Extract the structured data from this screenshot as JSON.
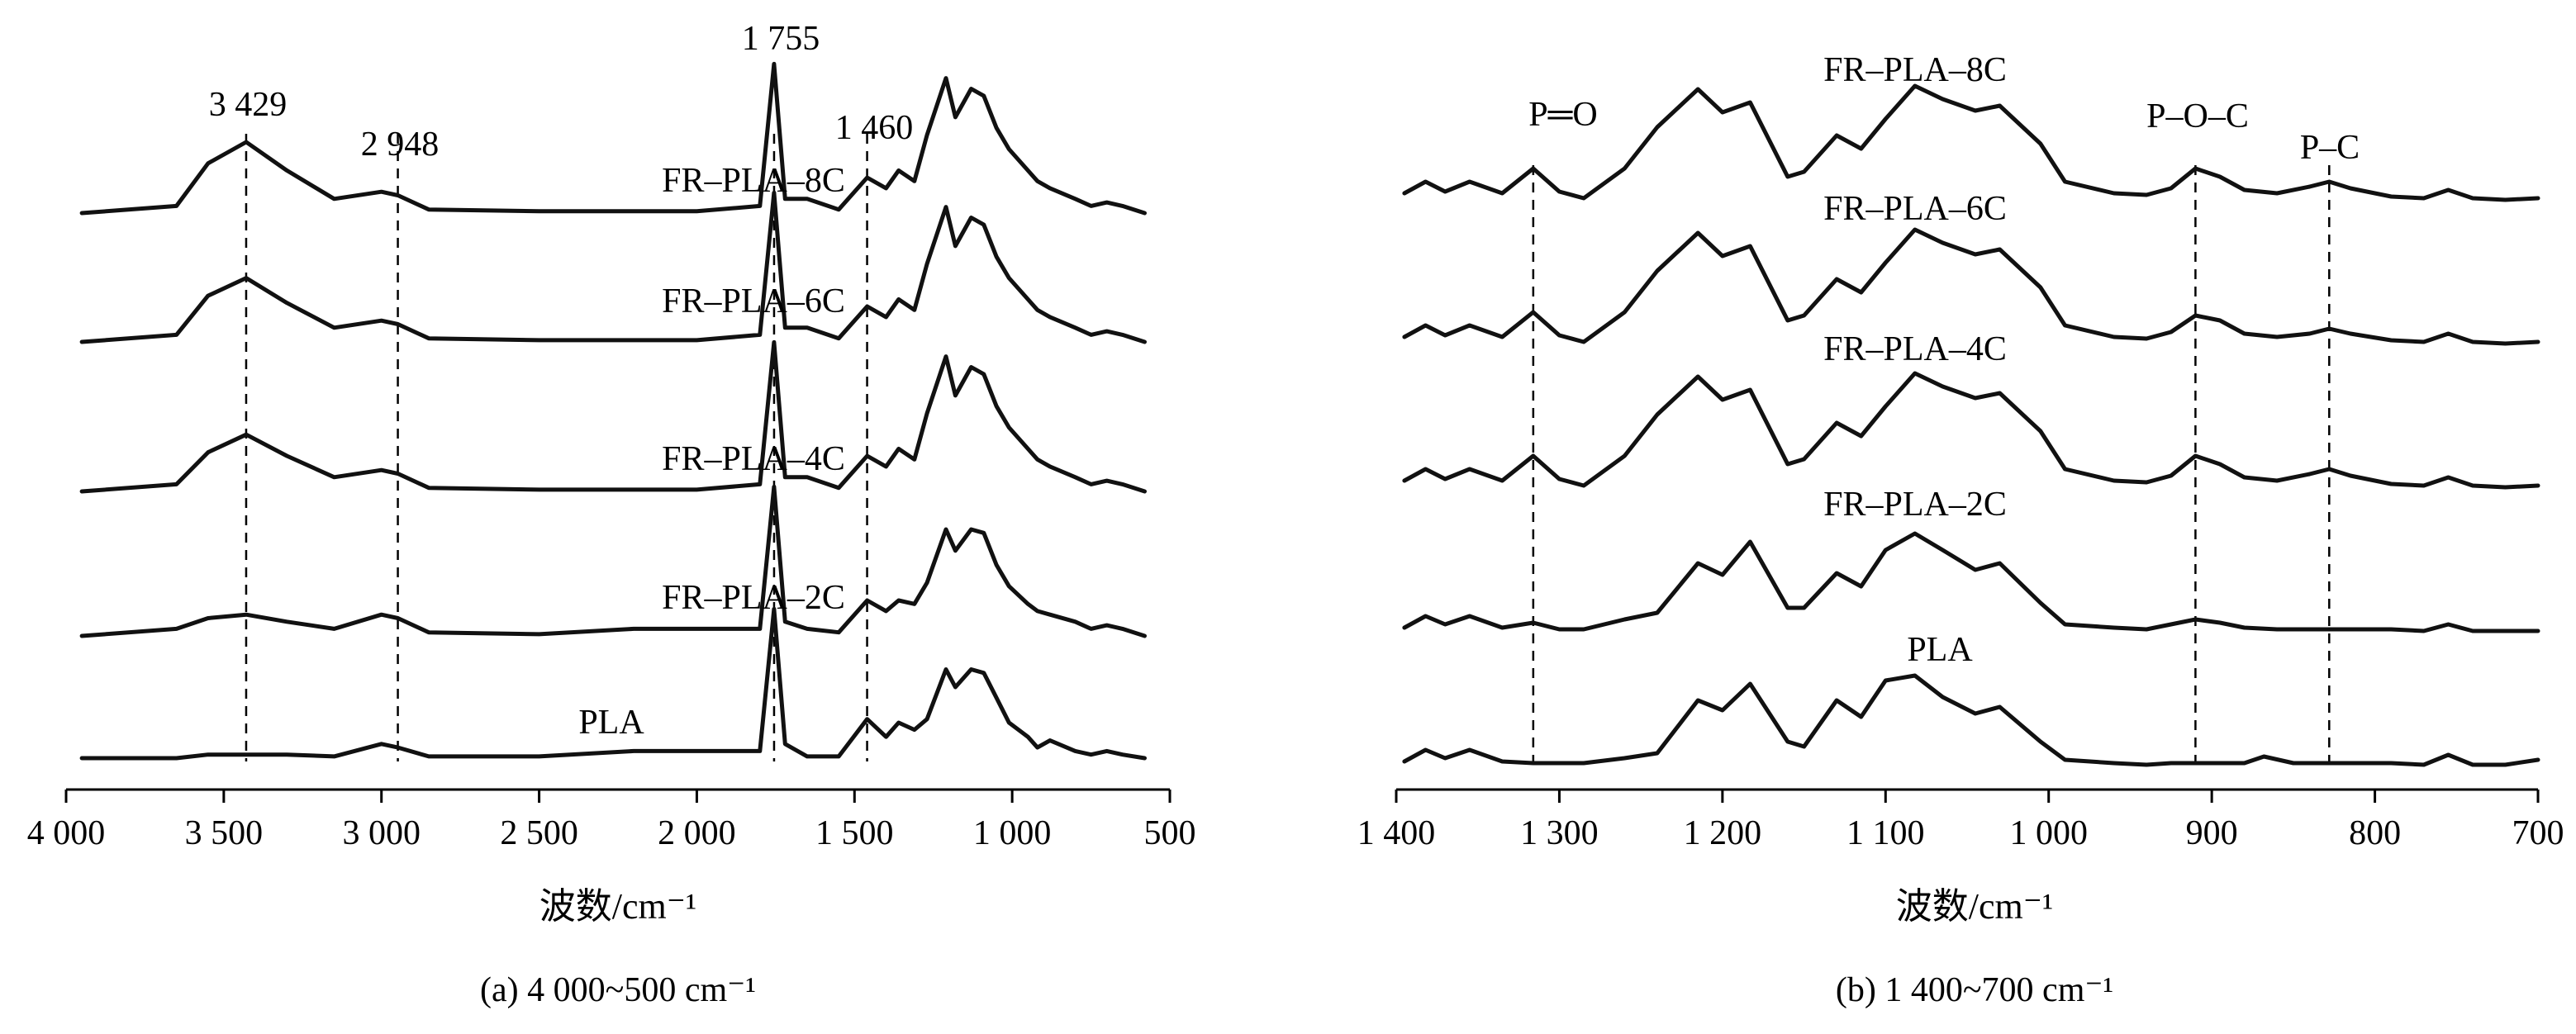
{
  "chart_data": [
    {
      "type": "line",
      "xlabel": "波数/cm⁻¹",
      "caption": "(a)  4 000~500 cm⁻¹",
      "xlim": [
        4000,
        500
      ],
      "x_ticks": [
        {
          "value": 4000,
          "label": "4 000"
        },
        {
          "value": 3500,
          "label": "3 500"
        },
        {
          "value": 3000,
          "label": "3 000"
        },
        {
          "value": 2500,
          "label": "2 500"
        },
        {
          "value": 2000,
          "label": "2 000"
        },
        {
          "value": 1500,
          "label": "1 500"
        },
        {
          "value": 1000,
          "label": "1 000"
        },
        {
          "value": 500,
          "label": "500"
        }
      ],
      "markers": [
        {
          "x": 3429,
          "label": "3 429"
        },
        {
          "x": 2948,
          "label": "2 948"
        },
        {
          "x": 1755,
          "label": "1 755"
        },
        {
          "x": 1460,
          "label": "1 460"
        }
      ],
      "series": [
        {
          "name": "FR–PLA–8C",
          "x": [
            3950,
            3650,
            3550,
            3429,
            3300,
            3150,
            3000,
            2948,
            2850,
            2500,
            2000,
            1800,
            1755,
            1720,
            1650,
            1550,
            1460,
            1400,
            1360,
            1310,
            1270,
            1210,
            1180,
            1130,
            1090,
            1050,
            1010,
            950,
            920,
            880,
            800,
            750,
            700,
            650,
            580
          ],
          "y": [
            0,
            0.02,
            0.14,
            0.2,
            0.12,
            0.04,
            0.06,
            0.05,
            0.01,
            0.005,
            0.005,
            0.02,
            0.42,
            0.04,
            0.04,
            0.01,
            0.1,
            0.07,
            0.12,
            0.09,
            0.22,
            0.38,
            0.27,
            0.35,
            0.33,
            0.24,
            0.18,
            0.12,
            0.09,
            0.07,
            0.04,
            0.02,
            0.03,
            0.02,
            0
          ]
        },
        {
          "name": "FR–PLA–6C",
          "x": [
            3950,
            3650,
            3550,
            3429,
            3300,
            3150,
            3000,
            2948,
            2850,
            2500,
            2000,
            1800,
            1755,
            1720,
            1650,
            1550,
            1460,
            1400,
            1360,
            1310,
            1270,
            1210,
            1180,
            1130,
            1090,
            1050,
            1010,
            950,
            920,
            880,
            800,
            750,
            700,
            650,
            580
          ],
          "y": [
            0,
            0.02,
            0.13,
            0.18,
            0.11,
            0.04,
            0.06,
            0.05,
            0.01,
            0.005,
            0.005,
            0.02,
            0.42,
            0.04,
            0.04,
            0.01,
            0.1,
            0.07,
            0.12,
            0.09,
            0.22,
            0.38,
            0.27,
            0.35,
            0.33,
            0.24,
            0.18,
            0.12,
            0.09,
            0.07,
            0.04,
            0.02,
            0.03,
            0.02,
            0
          ]
        },
        {
          "name": "FR–PLA–4C",
          "x": [
            3950,
            3650,
            3550,
            3429,
            3300,
            3150,
            3000,
            2948,
            2850,
            2500,
            2000,
            1800,
            1755,
            1720,
            1650,
            1550,
            1460,
            1400,
            1360,
            1310,
            1270,
            1210,
            1180,
            1130,
            1090,
            1050,
            1010,
            950,
            920,
            880,
            800,
            750,
            700,
            650,
            580
          ],
          "y": [
            0,
            0.02,
            0.11,
            0.16,
            0.1,
            0.04,
            0.06,
            0.05,
            0.01,
            0.005,
            0.005,
            0.02,
            0.42,
            0.04,
            0.04,
            0.01,
            0.1,
            0.07,
            0.12,
            0.09,
            0.22,
            0.38,
            0.27,
            0.35,
            0.33,
            0.24,
            0.18,
            0.12,
            0.09,
            0.07,
            0.04,
            0.02,
            0.03,
            0.02,
            0
          ]
        },
        {
          "name": "FR–PLA–2C",
          "x": [
            3950,
            3650,
            3550,
            3429,
            3300,
            3150,
            3000,
            2948,
            2850,
            2500,
            2200,
            2000,
            1800,
            1755,
            1720,
            1650,
            1550,
            1460,
            1400,
            1360,
            1310,
            1270,
            1210,
            1180,
            1130,
            1090,
            1050,
            1010,
            950,
            920,
            880,
            800,
            750,
            700,
            650,
            580
          ],
          "y": [
            0,
            0.02,
            0.05,
            0.06,
            0.04,
            0.02,
            0.06,
            0.05,
            0.01,
            0.005,
            0.02,
            0.02,
            0.02,
            0.42,
            0.04,
            0.02,
            0.01,
            0.1,
            0.07,
            0.1,
            0.09,
            0.15,
            0.3,
            0.24,
            0.3,
            0.29,
            0.2,
            0.14,
            0.09,
            0.07,
            0.06,
            0.04,
            0.02,
            0.03,
            0.02,
            0
          ]
        },
        {
          "name": "PLA",
          "x": [
            3950,
            3650,
            3550,
            3429,
            3300,
            3150,
            3000,
            2948,
            2850,
            2500,
            2200,
            2000,
            1800,
            1755,
            1720,
            1650,
            1550,
            1460,
            1400,
            1360,
            1310,
            1270,
            1210,
            1180,
            1130,
            1090,
            1050,
            1010,
            950,
            920,
            880,
            800,
            750,
            700,
            650,
            580
          ],
          "y": [
            0,
            0,
            0.01,
            0.01,
            0.01,
            0.005,
            0.04,
            0.03,
            0.005,
            0.005,
            0.02,
            0.02,
            0.02,
            0.42,
            0.04,
            0.005,
            0.005,
            0.11,
            0.06,
            0.1,
            0.08,
            0.11,
            0.25,
            0.2,
            0.25,
            0.24,
            0.17,
            0.1,
            0.06,
            0.03,
            0.05,
            0.02,
            0.01,
            0.02,
            0.01,
            0
          ]
        }
      ]
    },
    {
      "type": "line",
      "xlabel": "波数/cm⁻¹",
      "caption": "(b)  1 400~700 cm⁻¹",
      "xlim": [
        1400,
        700
      ],
      "x_ticks": [
        {
          "value": 1400,
          "label": "1 400"
        },
        {
          "value": 1300,
          "label": "1 300"
        },
        {
          "value": 1200,
          "label": "1 200"
        },
        {
          "value": 1100,
          "label": "1 100"
        },
        {
          "value": 1000,
          "label": "1 000"
        },
        {
          "value": 900,
          "label": "900"
        },
        {
          "value": 800,
          "label": "800"
        },
        {
          "value": 700,
          "label": "700"
        }
      ],
      "markers": [
        {
          "x": 1316,
          "label": "P═O"
        },
        {
          "x": 910,
          "label": "P–O–C"
        },
        {
          "x": 828,
          "label": "P–C"
        }
      ],
      "series": [
        {
          "name": "FR–PLA–8C",
          "x": [
            1395,
            1382,
            1370,
            1355,
            1335,
            1316,
            1300,
            1285,
            1260,
            1240,
            1215,
            1200,
            1183,
            1160,
            1150,
            1130,
            1115,
            1100,
            1082,
            1065,
            1045,
            1030,
            1005,
            990,
            960,
            940,
            925,
            910,
            895,
            880,
            860,
            840,
            828,
            815,
            790,
            770,
            755,
            740,
            720,
            700
          ],
          "y": [
            0.05,
            0.12,
            0.06,
            0.12,
            0.05,
            0.2,
            0.06,
            0.02,
            0.2,
            0.45,
            0.68,
            0.54,
            0.6,
            0.15,
            0.18,
            0.4,
            0.32,
            0.5,
            0.7,
            0.62,
            0.55,
            0.58,
            0.35,
            0.12,
            0.05,
            0.04,
            0.08,
            0.2,
            0.15,
            0.07,
            0.05,
            0.09,
            0.12,
            0.08,
            0.03,
            0.02,
            0.07,
            0.02,
            0.01,
            0.02
          ]
        },
        {
          "name": "FR–PLA–6C",
          "x": [
            1395,
            1382,
            1370,
            1355,
            1335,
            1316,
            1300,
            1285,
            1260,
            1240,
            1215,
            1200,
            1183,
            1160,
            1150,
            1130,
            1115,
            1100,
            1082,
            1065,
            1045,
            1030,
            1005,
            990,
            960,
            940,
            925,
            910,
            895,
            880,
            860,
            840,
            828,
            815,
            790,
            770,
            755,
            740,
            720,
            700
          ],
          "y": [
            0.05,
            0.12,
            0.06,
            0.12,
            0.05,
            0.2,
            0.06,
            0.02,
            0.2,
            0.45,
            0.68,
            0.54,
            0.6,
            0.15,
            0.18,
            0.4,
            0.32,
            0.5,
            0.7,
            0.62,
            0.55,
            0.58,
            0.35,
            0.12,
            0.05,
            0.04,
            0.08,
            0.18,
            0.15,
            0.07,
            0.05,
            0.07,
            0.1,
            0.07,
            0.03,
            0.02,
            0.07,
            0.02,
            0.01,
            0.02
          ]
        },
        {
          "name": "FR–PLA–4C",
          "x": [
            1395,
            1382,
            1370,
            1355,
            1335,
            1316,
            1300,
            1285,
            1260,
            1240,
            1215,
            1200,
            1183,
            1160,
            1150,
            1130,
            1115,
            1100,
            1082,
            1065,
            1045,
            1030,
            1005,
            990,
            960,
            940,
            925,
            910,
            895,
            880,
            860,
            840,
            828,
            815,
            790,
            770,
            755,
            740,
            720,
            700
          ],
          "y": [
            0.05,
            0.12,
            0.06,
            0.12,
            0.05,
            0.2,
            0.06,
            0.02,
            0.2,
            0.45,
            0.68,
            0.54,
            0.6,
            0.15,
            0.18,
            0.4,
            0.32,
            0.5,
            0.7,
            0.62,
            0.55,
            0.58,
            0.35,
            0.12,
            0.05,
            0.04,
            0.08,
            0.2,
            0.15,
            0.07,
            0.05,
            0.09,
            0.12,
            0.08,
            0.03,
            0.02,
            0.07,
            0.02,
            0.01,
            0.02
          ]
        },
        {
          "name": "FR–PLA–2C",
          "x": [
            1395,
            1382,
            1370,
            1355,
            1335,
            1316,
            1300,
            1285,
            1260,
            1240,
            1215,
            1200,
            1183,
            1160,
            1150,
            1130,
            1115,
            1100,
            1082,
            1065,
            1045,
            1030,
            1005,
            990,
            960,
            940,
            925,
            910,
            895,
            880,
            860,
            840,
            828,
            815,
            790,
            770,
            755,
            740,
            720,
            700
          ],
          "y": [
            0.03,
            0.1,
            0.05,
            0.1,
            0.03,
            0.06,
            0.02,
            0.02,
            0.08,
            0.12,
            0.42,
            0.35,
            0.55,
            0.15,
            0.15,
            0.36,
            0.28,
            0.5,
            0.6,
            0.5,
            0.38,
            0.42,
            0.18,
            0.05,
            0.03,
            0.02,
            0.05,
            0.08,
            0.06,
            0.03,
            0.02,
            0.02,
            0.02,
            0.02,
            0.02,
            0.01,
            0.05,
            0.01,
            0.01,
            0.01
          ]
        },
        {
          "name": "PLA",
          "x": [
            1395,
            1382,
            1370,
            1355,
            1335,
            1316,
            1300,
            1285,
            1260,
            1240,
            1215,
            1200,
            1183,
            1160,
            1150,
            1130,
            1115,
            1100,
            1082,
            1065,
            1045,
            1030,
            1005,
            990,
            960,
            940,
            925,
            910,
            895,
            880,
            868,
            850,
            828,
            815,
            790,
            770,
            755,
            740,
            720,
            700
          ],
          "y": [
            0.03,
            0.1,
            0.05,
            0.1,
            0.03,
            0.02,
            0.02,
            0.02,
            0.05,
            0.08,
            0.4,
            0.34,
            0.5,
            0.15,
            0.12,
            0.4,
            0.3,
            0.52,
            0.55,
            0.42,
            0.32,
            0.36,
            0.15,
            0.04,
            0.02,
            0.01,
            0.02,
            0.02,
            0.02,
            0.02,
            0.06,
            0.02,
            0.02,
            0.02,
            0.02,
            0.01,
            0.07,
            0.01,
            0.01,
            0.04
          ]
        }
      ]
    }
  ]
}
